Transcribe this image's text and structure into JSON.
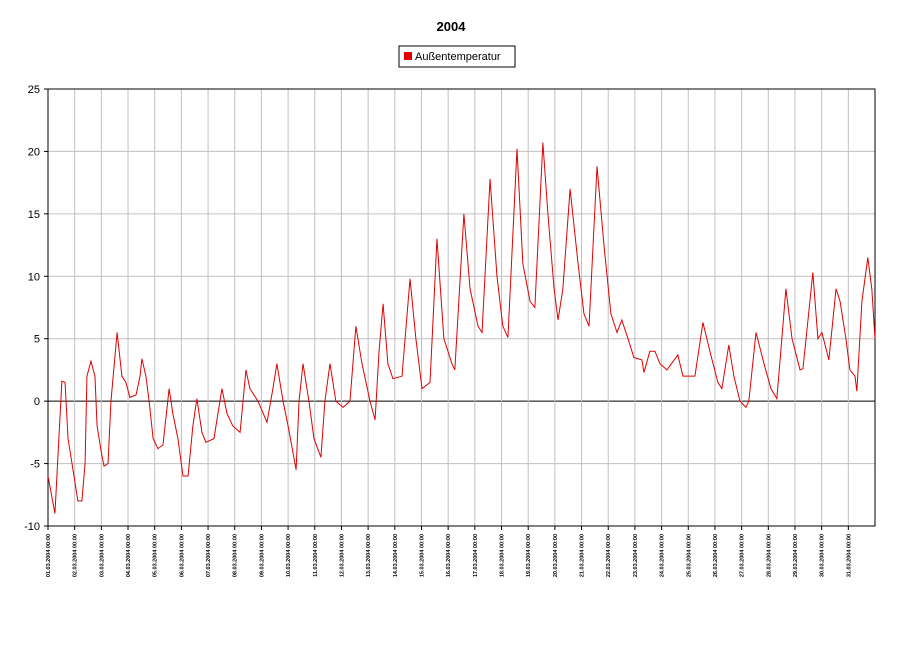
{
  "chart_data": {
    "type": "line",
    "title": "2004",
    "x": [
      0,
      0.26,
      0.52,
      0.64,
      0.75,
      0.9,
      1.12,
      1.27,
      1.39,
      1.46,
      1.61,
      1.76,
      1.84,
      1.99,
      2.1,
      2.25,
      2.36,
      2.59,
      2.77,
      2.92,
      3.07,
      3.3,
      3.45,
      3.52,
      3.67,
      3.79,
      3.94,
      4.12,
      4.31,
      4.54,
      4.68,
      4.87,
      5.06,
      5.25,
      5.43,
      5.58,
      5.77,
      5.92,
      6.22,
      6.52,
      6.71,
      6.93,
      7.2,
      7.42,
      7.57,
      7.87,
      8.21,
      8.43,
      8.58,
      8.81,
      9.0,
      9.3,
      9.41,
      9.56,
      9.78,
      9.97,
      10.23,
      10.38,
      10.57,
      10.79,
      11.06,
      11.32,
      11.54,
      11.77,
      12.07,
      12.26,
      12.41,
      12.56,
      12.74,
      12.93,
      13.27,
      13.57,
      13.79,
      14.02,
      14.32,
      14.58,
      14.84,
      15.14,
      15.25,
      15.59,
      15.82,
      16.12,
      16.27,
      16.57,
      16.83,
      17.05,
      17.24,
      17.58,
      17.8,
      18.07,
      18.25,
      18.55,
      18.74,
      18.97,
      19.12,
      19.3,
      19.57,
      19.87,
      20.09,
      20.28,
      20.58,
      20.84,
      21.1,
      21.33,
      21.51,
      21.74,
      21.96,
      22.26,
      22.34,
      22.56,
      22.75,
      22.94,
      23.2,
      23.61,
      23.8,
      24.25,
      24.55,
      24.81,
      25.11,
      25.26,
      25.52,
      25.71,
      25.94,
      26.16,
      26.27,
      26.54,
      26.84,
      27.1,
      27.32,
      27.47,
      27.66,
      27.89,
      28.19,
      28.3,
      28.56,
      28.67,
      28.86,
      29.01,
      29.27,
      29.54,
      29.69,
      29.91,
      30.06,
      30.25,
      30.32,
      30.51,
      30.73,
      30.88,
      31.0
    ],
    "series": [
      {
        "name": "Außentemperatur",
        "color": "#e00000",
        "values": [
          -6,
          -9,
          1.6,
          1.5,
          -3,
          -5,
          -8,
          -8,
          -5,
          2,
          3.2,
          2,
          -2,
          -4,
          -5.2,
          -5,
          0,
          5.5,
          2,
          1.5,
          0.3,
          0.5,
          2,
          3.4,
          2,
          0,
          -3,
          -3.8,
          -3.5,
          1,
          -1,
          -3,
          -6,
          -6,
          -2,
          0.2,
          -2.5,
          -3.3,
          -3,
          1,
          -1,
          -2,
          -2.5,
          2.5,
          1,
          0,
          -1.7,
          1,
          3,
          0,
          -2,
          -5.5,
          0,
          3,
          0,
          -3,
          -4.5,
          0,
          3,
          0,
          -0.5,
          0,
          6,
          3,
          0,
          -1.5,
          4,
          7.8,
          3,
          1.8,
          2,
          9.8,
          5,
          1,
          1.5,
          13,
          5,
          3,
          2.5,
          15,
          9,
          6,
          5.5,
          17.8,
          10,
          6,
          5.1,
          20.2,
          11,
          8,
          7.5,
          20.7,
          15,
          9,
          6.5,
          9,
          17,
          11,
          7,
          6,
          18.8,
          12.5,
          7,
          5.5,
          6.5,
          5,
          3.5,
          3.3,
          2.3,
          4,
          4,
          3,
          2.5,
          3.7,
          2,
          2,
          6.3,
          4,
          1.5,
          1,
          4.5,
          2,
          0,
          -0.5,
          0,
          5.5,
          3,
          1,
          0.2,
          4,
          9,
          5,
          2.5,
          2.6,
          8,
          10.3,
          5,
          5.5,
          3.3,
          9,
          8,
          5,
          2.5,
          2,
          0.8,
          8,
          11.5,
          9,
          5
        ]
      }
    ],
    "xlim": [
      0,
      31
    ],
    "xticks": [
      {
        "value": 0,
        "label": "01.03.2004 00:00"
      },
      {
        "value": 1,
        "label": "02.03.2004 00:00"
      },
      {
        "value": 2,
        "label": "03.03.2004 00:00"
      },
      {
        "value": 3,
        "label": "04.03.2004 00:00"
      },
      {
        "value": 4,
        "label": "05.03.2004 00:00"
      },
      {
        "value": 5,
        "label": "06.03.2004 00:00"
      },
      {
        "value": 6,
        "label": "07.03.2004 00:00"
      },
      {
        "value": 7,
        "label": "08.03.2004 00:00"
      },
      {
        "value": 8,
        "label": "09.03.2004 00:00"
      },
      {
        "value": 9,
        "label": "10.03.2004 00:00"
      },
      {
        "value": 10,
        "label": "11.03.2004 00:00"
      },
      {
        "value": 11,
        "label": "12.03.2004 00:00"
      },
      {
        "value": 12,
        "label": "13.03.2004 00:00"
      },
      {
        "value": 13,
        "label": "14.03.2004 00:00"
      },
      {
        "value": 14,
        "label": "15.03.2004 00:00"
      },
      {
        "value": 15,
        "label": "16.03.2004 00:00"
      },
      {
        "value": 16,
        "label": "17.03.2004 00:00"
      },
      {
        "value": 17,
        "label": "18.03.2004 00:00"
      },
      {
        "value": 18,
        "label": "19.03.2004 00:00"
      },
      {
        "value": 19,
        "label": "20.03.2004 00:00"
      },
      {
        "value": 20,
        "label": "21.03.2004 00:00"
      },
      {
        "value": 21,
        "label": "22.03.2004 00:00"
      },
      {
        "value": 22,
        "label": "23.03.2004 00:00"
      },
      {
        "value": 23,
        "label": "24.03.2004 00:00"
      },
      {
        "value": 24,
        "label": "25.03.2004 00:00"
      },
      {
        "value": 25,
        "label": "26.03.2004 00:00"
      },
      {
        "value": 26,
        "label": "27.03.2004 00:00"
      },
      {
        "value": 27,
        "label": "28.03.2004 00:00"
      },
      {
        "value": 28,
        "label": "29.03.2004 00:00"
      },
      {
        "value": 29,
        "label": "30.03.2004 00:00"
      },
      {
        "value": 30,
        "label": "31.03.2004 00:00"
      }
    ],
    "ylim": [
      -10,
      25
    ],
    "yticks": [
      -10,
      -5,
      0,
      5,
      10,
      15,
      20,
      25
    ],
    "grid": true
  }
}
